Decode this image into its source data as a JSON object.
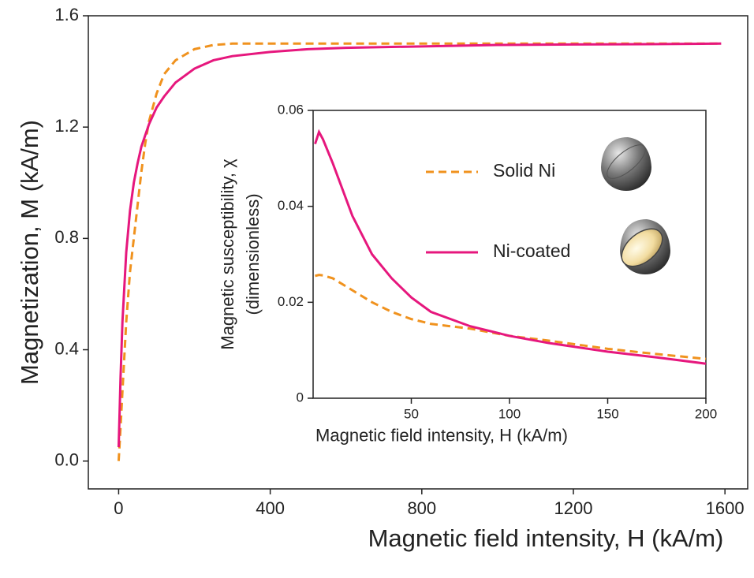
{
  "chart_data": [
    {
      "type": "line",
      "xlabel": "Magnetic field intensity, H (kA/m)",
      "ylabel": [
        "Magnetization, M (kA/m)"
      ],
      "x": [
        0,
        5,
        10,
        20,
        30,
        40,
        50,
        60,
        70,
        80,
        100,
        120,
        150,
        200,
        250,
        300,
        400,
        500,
        600,
        800,
        1000,
        1200,
        1400,
        1590
      ],
      "series": [
        {
          "color": "#f0921e",
          "dashed": true,
          "values": [
            0,
            0.12,
            0.25,
            0.5,
            0.68,
            0.8,
            0.92,
            1.04,
            1.14,
            1.22,
            1.32,
            1.39,
            1.44,
            1.48,
            1.495,
            1.5,
            1.5,
            1.5,
            1.5,
            1.5,
            1.5,
            1.5,
            1.5,
            1.5
          ]
        },
        {
          "color": "#e6177d",
          "dashed": false,
          "values": [
            0.05,
            0.3,
            0.5,
            0.75,
            0.9,
            1.0,
            1.07,
            1.13,
            1.17,
            1.21,
            1.27,
            1.31,
            1.36,
            1.41,
            1.44,
            1.455,
            1.47,
            1.48,
            1.485,
            1.49,
            1.495,
            1.497,
            1.498,
            1.5
          ]
        }
      ],
      "xlim": [
        -80,
        1660
      ],
      "ylim": [
        -0.1,
        1.6
      ],
      "xticks": [
        0,
        400,
        800,
        1200,
        1600
      ],
      "yticks": [
        {
          "value": 0,
          "label": "0.0"
        },
        0.4,
        0.8,
        1.2,
        1.6
      ]
    },
    {
      "type": "line",
      "xlabel": "Magnetic field intensity, H (kA/m)",
      "ylabel": [
        "Magnetic susceptibility, χ",
        "(dimensionless)"
      ],
      "x": [
        1,
        3,
        5,
        10,
        20,
        30,
        40,
        50,
        60,
        70,
        80,
        100,
        120,
        150,
        175,
        200
      ],
      "series": [
        {
          "name": "Solid Ni",
          "color": "#f0921e",
          "dashed": true,
          "values": [
            0.0255,
            0.0257,
            0.0256,
            0.025,
            0.0225,
            0.02,
            0.018,
            0.0165,
            0.0155,
            0.015,
            0.0145,
            0.013,
            0.012,
            0.0103,
            0.0092,
            0.0082
          ]
        },
        {
          "name": "Ni-coated",
          "color": "#e6177d",
          "dashed": false,
          "values": [
            0.053,
            0.0555,
            0.054,
            0.049,
            0.038,
            0.03,
            0.025,
            0.021,
            0.018,
            0.0165,
            0.015,
            0.013,
            0.0115,
            0.0097,
            0.0085,
            0.0072
          ]
        }
      ],
      "xlim": [
        0,
        200
      ],
      "ylim": [
        0,
        0.06
      ],
      "xticks": [
        50,
        100,
        150,
        200
      ],
      "yticks": [
        0,
        0.02,
        0.04,
        0.06
      ]
    }
  ]
}
